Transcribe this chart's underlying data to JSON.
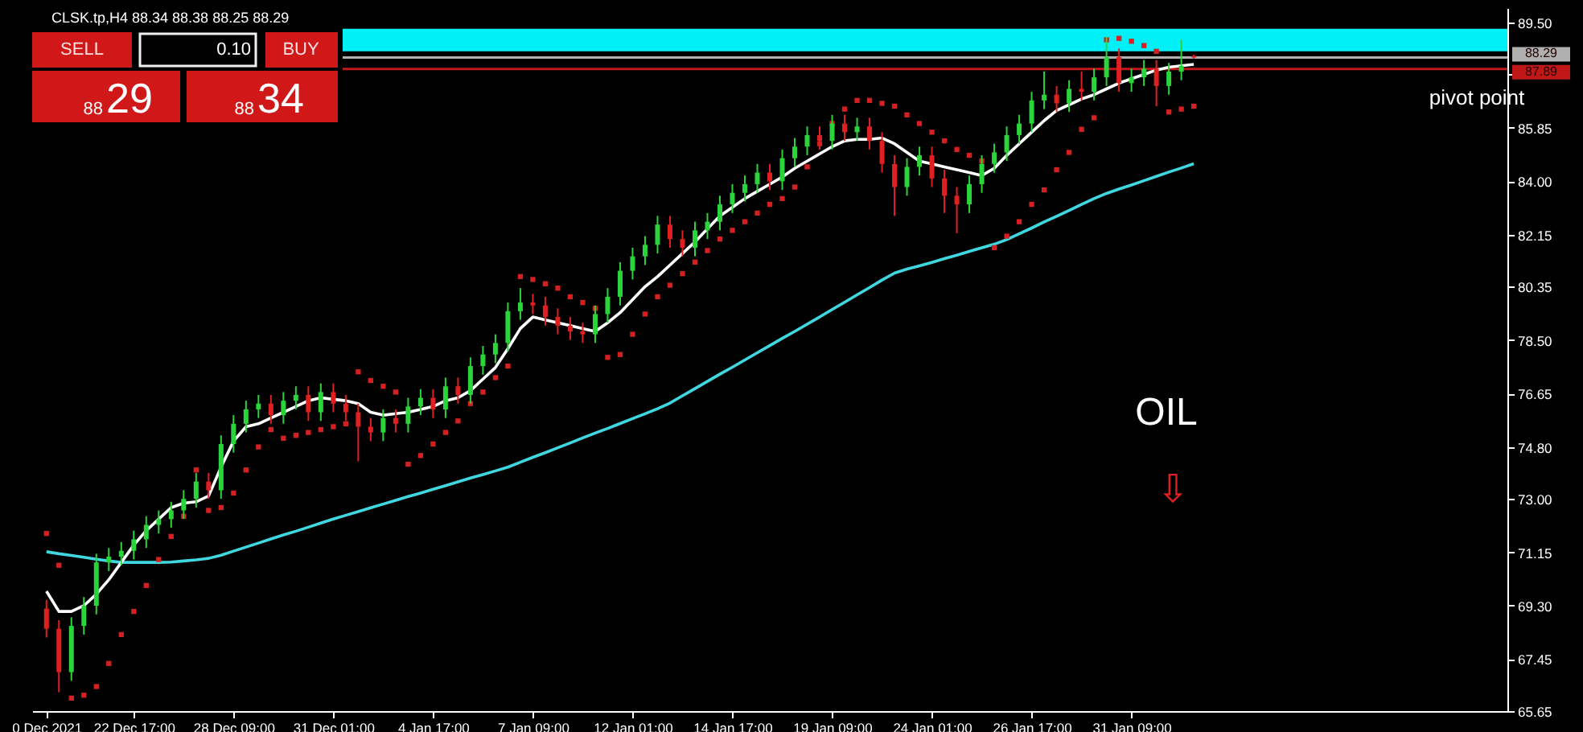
{
  "chart_data": {
    "type": "candlestick",
    "title": "CLSK.tp,H4  88.34 88.38 88.25 88.29",
    "categories": [
      "0 Dec 2021",
      null,
      null,
      null,
      null,
      null,
      null,
      "22 Dec 17:00",
      null,
      null,
      null,
      null,
      null,
      null,
      null,
      "28 Dec 09:00",
      null,
      null,
      null,
      null,
      null,
      null,
      null,
      "31 Dec 01:00",
      null,
      null,
      null,
      null,
      null,
      null,
      null,
      "4 Jan 17:00",
      null,
      null,
      null,
      null,
      null,
      null,
      null,
      "7 Jan 09:00",
      null,
      null,
      null,
      null,
      null,
      null,
      null,
      "12 Jan 01:00",
      null,
      null,
      null,
      null,
      null,
      null,
      null,
      "14 Jan 17:00",
      null,
      null,
      null,
      null,
      null,
      null,
      null,
      "19 Jan 09:00",
      null,
      null,
      null,
      null,
      null,
      null,
      null,
      "24 Jan 01:00",
      null,
      null,
      null,
      null,
      null,
      null,
      null,
      "26 Jan 17:00",
      null,
      null,
      null,
      null,
      null,
      null,
      null,
      "31 Jan 09:00",
      null,
      null,
      null,
      null,
      null,
      null,
      null,
      null,
      null,
      null,
      null,
      null,
      null,
      null,
      null,
      null,
      null,
      null,
      null,
      null,
      null,
      null,
      null,
      null,
      null,
      null,
      null,
      null,
      null
    ],
    "ylim": [
      65.65,
      90.0
    ],
    "yticks": [
      {
        "value": 65.65,
        "label": "65.65"
      },
      {
        "value": 67.45,
        "label": "67.45"
      },
      {
        "value": 69.3,
        "label": "69.30"
      },
      {
        "value": 71.15,
        "label": "71.15"
      },
      {
        "value": 73.0,
        "label": "73.00"
      },
      {
        "value": 74.8,
        "label": "74.80"
      },
      {
        "value": 76.65,
        "label": "76.65"
      },
      {
        "value": 78.5,
        "label": "78.50"
      },
      {
        "value": 80.35,
        "label": "80.35"
      },
      {
        "value": 82.15,
        "label": "82.15"
      },
      {
        "value": 84.0,
        "label": "84.00"
      },
      {
        "value": 85.85,
        "label": "85.85"
      },
      {
        "value": 87.7,
        "label": null
      },
      {
        "value": 89.5,
        "label": "89.50"
      }
    ],
    "series": [
      {
        "colors": [
          "#e02020",
          "#e02020",
          "#2bd43a",
          "#2bd43a",
          "#2bd43a",
          "#2bd43a",
          "#2bd43a",
          "#2bd43a",
          "#2bd43a",
          "#2bd43a",
          "#2bd43a",
          "#2bd43a",
          "#2bd43a",
          "#e02020",
          "#2bd43a",
          "#2bd43a",
          "#2bd43a",
          "#2bd43a",
          "#e02020",
          "#2bd43a",
          "#2bd43a",
          "#e02020",
          "#2bd43a",
          "#e02020",
          "#e02020",
          "#e02020",
          "#e02020",
          "#2bd43a",
          "#e02020",
          "#2bd43a",
          "#2bd43a",
          "#e02020",
          "#2bd43a",
          "#e02020",
          "#2bd43a",
          "#2bd43a",
          "#2bd43a",
          "#2bd43a",
          "#2bd43a",
          "#e02020",
          "#e02020",
          "#e02020",
          "#e02020",
          "#e02020",
          "#2bd43a",
          "#2bd43a",
          "#2bd43a",
          "#2bd43a",
          "#2bd43a",
          "#2bd43a",
          "#e02020",
          "#e02020",
          "#2bd43a",
          "#2bd43a",
          "#2bd43a",
          "#2bd43a",
          "#2bd43a",
          "#2bd43a",
          "#e02020",
          "#2bd43a",
          "#2bd43a",
          "#2bd43a",
          "#e02020",
          "#2bd43a",
          "#e02020",
          "#2bd43a",
          "#e02020",
          "#e02020",
          "#e02020",
          "#2bd43a",
          "#2bd43a",
          "#e02020",
          "#e02020",
          "#e02020",
          "#2bd43a",
          "#2bd43a",
          "#2bd43a",
          "#2bd43a",
          "#2bd43a",
          "#2bd43a",
          "#2bd43a",
          "#e02020",
          "#2bd43a",
          "#e02020",
          "#2bd43a",
          "#2bd43a",
          "#e02020",
          "#2bd43a",
          "#2bd43a",
          "#e02020",
          "#2bd43a",
          "#2bd43a",
          "#e02020",
          null,
          null,
          null,
          null,
          null,
          null,
          null,
          null,
          null,
          null,
          null,
          null,
          null,
          null,
          null,
          null,
          null,
          null,
          null,
          null,
          null,
          null,
          null,
          null
        ],
        "ohlc": [
          [
            69.2,
            69.5,
            68.2,
            68.5
          ],
          [
            68.5,
            68.8,
            66.3,
            67.0
          ],
          [
            67.0,
            68.9,
            66.7,
            68.6
          ],
          [
            68.6,
            69.6,
            68.3,
            69.3
          ],
          [
            69.3,
            71.1,
            69.0,
            70.8
          ],
          [
            70.8,
            71.3,
            70.5,
            71.0
          ],
          [
            71.0,
            71.5,
            70.7,
            71.2
          ],
          [
            71.2,
            71.9,
            70.9,
            71.6
          ],
          [
            71.6,
            72.4,
            71.3,
            72.1
          ],
          [
            72.1,
            72.6,
            71.8,
            72.3
          ],
          [
            72.3,
            72.9,
            72.0,
            72.6
          ],
          [
            72.6,
            73.3,
            72.3,
            73.0
          ],
          [
            73.0,
            73.9,
            72.7,
            73.6
          ],
          [
            73.6,
            73.9,
            73.0,
            73.3
          ],
          [
            73.3,
            75.2,
            73.0,
            74.9
          ],
          [
            74.9,
            75.9,
            74.6,
            75.6
          ],
          [
            75.6,
            76.4,
            75.3,
            76.1
          ],
          [
            76.1,
            76.6,
            75.8,
            76.3
          ],
          [
            76.3,
            76.6,
            75.6,
            75.9
          ],
          [
            75.9,
            76.7,
            75.6,
            76.4
          ],
          [
            76.4,
            76.9,
            76.1,
            76.6
          ],
          [
            76.6,
            76.9,
            75.7,
            76.0
          ],
          [
            76.0,
            77.0,
            75.7,
            76.7
          ],
          [
            76.7,
            77.0,
            76.0,
            76.3
          ],
          [
            76.3,
            76.6,
            75.7,
            76.0
          ],
          [
            76.0,
            76.3,
            74.3,
            75.5
          ],
          [
            75.5,
            75.8,
            75.0,
            75.3
          ],
          [
            75.3,
            76.1,
            75.0,
            75.8
          ],
          [
            75.8,
            76.1,
            75.3,
            75.6
          ],
          [
            75.6,
            76.5,
            75.3,
            76.2
          ],
          [
            76.2,
            76.8,
            75.9,
            76.5
          ],
          [
            76.5,
            76.8,
            75.8,
            76.1
          ],
          [
            76.1,
            77.2,
            75.8,
            76.9
          ],
          [
            76.9,
            77.2,
            76.3,
            76.6
          ],
          [
            76.6,
            77.9,
            76.3,
            77.6
          ],
          [
            77.6,
            78.3,
            77.3,
            78.0
          ],
          [
            78.0,
            78.7,
            77.7,
            78.4
          ],
          [
            78.4,
            79.8,
            78.1,
            79.5
          ],
          [
            79.5,
            80.3,
            79.2,
            79.8
          ],
          [
            79.8,
            80.1,
            79.4,
            79.7
          ],
          [
            79.7,
            80.0,
            79.0,
            79.3
          ],
          [
            79.3,
            79.6,
            78.7,
            79.0
          ],
          [
            79.0,
            79.3,
            78.5,
            78.8
          ],
          [
            78.8,
            79.1,
            78.4,
            78.7
          ],
          [
            78.7,
            79.7,
            78.4,
            79.4
          ],
          [
            79.4,
            80.3,
            79.1,
            80.0
          ],
          [
            80.0,
            81.2,
            79.7,
            80.9
          ],
          [
            80.9,
            81.7,
            80.6,
            81.4
          ],
          [
            81.4,
            82.1,
            81.1,
            81.8
          ],
          [
            81.8,
            82.8,
            81.5,
            82.5
          ],
          [
            82.5,
            82.8,
            81.7,
            82.0
          ],
          [
            82.0,
            82.3,
            81.4,
            81.7
          ],
          [
            81.7,
            82.6,
            81.4,
            82.3
          ],
          [
            82.3,
            82.9,
            82.0,
            82.6
          ],
          [
            82.6,
            83.5,
            82.3,
            83.2
          ],
          [
            83.2,
            83.9,
            82.9,
            83.6
          ],
          [
            83.6,
            84.2,
            83.3,
            83.9
          ],
          [
            83.9,
            84.6,
            83.6,
            84.3
          ],
          [
            84.3,
            84.6,
            83.7,
            84.0
          ],
          [
            84.0,
            85.1,
            83.7,
            84.8
          ],
          [
            84.8,
            85.5,
            84.5,
            85.2
          ],
          [
            85.2,
            85.9,
            84.9,
            85.6
          ],
          [
            85.6,
            85.9,
            85.1,
            85.4
          ],
          [
            85.4,
            86.3,
            85.1,
            86.0
          ],
          [
            86.0,
            86.3,
            85.4,
            85.7
          ],
          [
            85.7,
            86.2,
            85.4,
            85.9
          ],
          [
            85.9,
            86.2,
            85.1,
            85.4
          ],
          [
            85.4,
            85.7,
            84.3,
            84.6
          ],
          [
            84.6,
            84.9,
            82.8,
            83.8
          ],
          [
            83.8,
            84.8,
            83.5,
            84.5
          ],
          [
            84.5,
            85.2,
            84.2,
            84.9
          ],
          [
            84.9,
            85.2,
            83.8,
            84.1
          ],
          [
            84.1,
            84.4,
            82.9,
            83.5
          ],
          [
            83.5,
            83.8,
            82.2,
            83.2
          ],
          [
            83.2,
            84.2,
            82.9,
            83.9
          ],
          [
            83.9,
            84.9,
            83.6,
            84.6
          ],
          [
            84.6,
            85.3,
            84.3,
            85.0
          ],
          [
            85.0,
            85.9,
            84.7,
            85.6
          ],
          [
            85.6,
            86.3,
            85.3,
            86.0
          ],
          [
            86.0,
            87.1,
            85.7,
            86.8
          ],
          [
            86.8,
            87.8,
            86.5,
            87.0
          ],
          [
            87.0,
            87.3,
            86.4,
            86.7
          ],
          [
            86.7,
            87.5,
            86.4,
            87.2
          ],
          [
            87.2,
            87.8,
            86.8,
            87.1
          ],
          [
            87.1,
            87.9,
            86.8,
            87.6
          ],
          [
            87.6,
            89.0,
            87.3,
            88.3
          ],
          [
            88.3,
            88.6,
            87.1,
            87.4
          ],
          [
            87.4,
            87.9,
            87.1,
            87.6
          ],
          [
            87.6,
            88.2,
            87.3,
            87.9
          ],
          [
            87.9,
            88.2,
            86.6,
            87.3
          ],
          [
            87.3,
            88.1,
            87.0,
            87.8
          ],
          [
            87.8,
            88.9,
            87.5,
            88.0
          ],
          [
            88.34,
            88.38,
            88.25,
            88.29
          ],
          null,
          null,
          null,
          null,
          null,
          null,
          null,
          null,
          null,
          null,
          null,
          null,
          null,
          null,
          null,
          null,
          null,
          null,
          null,
          null,
          null,
          null,
          null,
          null
        ]
      },
      {
        "type": "line",
        "color": "#40d8e0",
        "values": [
          71.17,
          71.1,
          71.04,
          70.98,
          70.91,
          70.85,
          70.8,
          70.8,
          70.8,
          70.8,
          70.81,
          70.85,
          70.89,
          70.94,
          71.05,
          71.19,
          71.33,
          71.47,
          71.61,
          71.75,
          71.88,
          72.02,
          72.16,
          72.3,
          72.43,
          72.56,
          72.69,
          72.82,
          72.95,
          73.08,
          73.2,
          73.33,
          73.46,
          73.59,
          73.72,
          73.84,
          73.97,
          74.1,
          74.27,
          74.44,
          74.6,
          74.77,
          74.94,
          75.11,
          75.28,
          75.44,
          75.61,
          75.78,
          75.95,
          76.12,
          76.32,
          76.57,
          76.82,
          77.07,
          77.32,
          77.56,
          77.81,
          78.06,
          78.31,
          78.56,
          78.8,
          79.05,
          79.3,
          79.56,
          79.81,
          80.07,
          80.32,
          80.58,
          80.82,
          80.96,
          81.07,
          81.19,
          81.32,
          81.44,
          81.57,
          81.7,
          81.82,
          81.98,
          82.18,
          82.38,
          82.59,
          82.79,
          82.99,
          83.2,
          83.4,
          83.58,
          83.73,
          83.87,
          84.02,
          84.17,
          84.32,
          84.46,
          84.61,
          null,
          null,
          null,
          null,
          null,
          null,
          null,
          null,
          null,
          null,
          null,
          null,
          null,
          null,
          null,
          null,
          null,
          null,
          null,
          null,
          null,
          null,
          null,
          null
        ]
      },
      {
        "type": "line",
        "color": "#ffffff",
        "values": [
          69.8,
          69.1,
          69.1,
          69.3,
          69.7,
          70.2,
          70.8,
          71.4,
          71.9,
          72.3,
          72.7,
          72.85,
          72.9,
          73.1,
          74.1,
          75.0,
          75.5,
          75.6,
          75.8,
          76.0,
          76.2,
          76.4,
          76.5,
          76.45,
          76.4,
          76.3,
          76.0,
          75.9,
          75.95,
          76.0,
          76.1,
          76.2,
          76.4,
          76.5,
          76.75,
          77.15,
          77.55,
          78.2,
          78.9,
          79.3,
          79.2,
          79.1,
          79.0,
          78.9,
          78.8,
          79.1,
          79.45,
          79.9,
          80.35,
          80.7,
          81.1,
          81.5,
          81.9,
          82.35,
          82.8,
          83.1,
          83.4,
          83.65,
          83.9,
          84.15,
          84.45,
          84.7,
          84.95,
          85.2,
          85.4,
          85.45,
          85.45,
          85.5,
          85.3,
          85.0,
          84.7,
          84.6,
          84.5,
          84.4,
          84.3,
          84.2,
          84.45,
          84.9,
          85.3,
          85.7,
          86.1,
          86.45,
          86.65,
          86.85,
          87.0,
          87.2,
          87.4,
          87.55,
          87.7,
          87.85,
          87.95,
          88.0,
          88.05,
          null,
          null,
          null,
          null,
          null,
          null,
          null,
          null,
          null,
          null,
          null,
          null,
          null,
          null,
          null,
          null,
          null,
          null,
          null,
          null,
          null,
          null,
          null,
          null
        ]
      },
      {
        "type": "scatter",
        "color": "#d42020",
        "marker": "square",
        "values": [
          71.8,
          70.7,
          66.1,
          66.2,
          66.5,
          67.3,
          68.3,
          69.1,
          70.0,
          70.9,
          71.7,
          72.4,
          74.0,
          72.6,
          72.7,
          73.2,
          74.0,
          74.8,
          75.4,
          75.1,
          75.2,
          75.3,
          75.4,
          75.5,
          75.6,
          77.4,
          77.1,
          76.9,
          76.7,
          74.2,
          74.5,
          74.9,
          75.3,
          75.7,
          76.3,
          76.7,
          77.2,
          77.6,
          80.7,
          80.6,
          80.45,
          80.3,
          80.0,
          79.8,
          79.6,
          77.9,
          78.0,
          78.7,
          79.4,
          80.0,
          80.4,
          80.8,
          81.2,
          81.6,
          82.0,
          82.3,
          82.6,
          82.9,
          83.2,
          83.4,
          83.8,
          84.5,
          85.3,
          86.0,
          86.5,
          86.8,
          86.8,
          86.7,
          86.6,
          86.3,
          86.0,
          85.7,
          85.4,
          85.1,
          84.9,
          84.7,
          81.7,
          82.1,
          82.6,
          83.2,
          83.7,
          84.4,
          85.0,
          85.8,
          86.2,
          88.9,
          88.95,
          88.85,
          88.7,
          88.5,
          86.4,
          86.5,
          86.6,
          null,
          null,
          null,
          null,
          null,
          null,
          null,
          null,
          null,
          null,
          null,
          null,
          null,
          null,
          null,
          null,
          null,
          null,
          null,
          null,
          null,
          null,
          null,
          null
        ]
      }
    ],
    "bands": [
      {
        "axis": "y",
        "from": 88.5,
        "to": 89.28,
        "color": "#00f0f8"
      }
    ],
    "ref_lines": [
      {
        "axis": "y",
        "value": 88.29,
        "label": "88.29",
        "color": "#b0b0b0"
      },
      {
        "axis": "y",
        "value": 87.89,
        "label": "87.89",
        "color": "#c01818"
      }
    ],
    "annotations": [
      "SELL",
      "0.10",
      "BUY",
      "88",
      "29",
      "88",
      "34",
      "pivot point",
      "OIL",
      "⇩"
    ]
  }
}
